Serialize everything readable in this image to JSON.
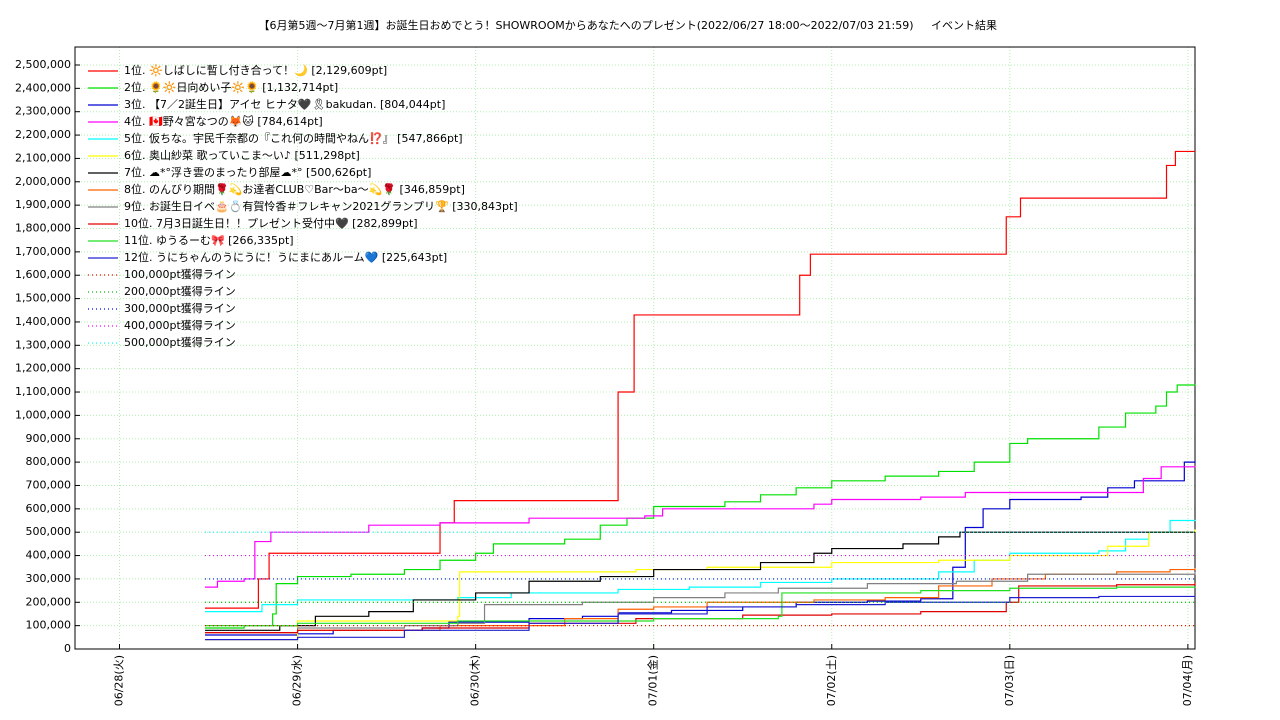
{
  "chart_data": {
    "type": "line",
    "title": "【6月第5週～7月第1週】お誕生日おめでとう！SHOWROOMからあなたへのプレゼント(2022/06/27 18:00〜2022/07/03 21:59)",
    "subtitle": "イベント結果",
    "xlim": [
      -0.25,
      6.04
    ],
    "xticks": [
      {
        "value": 0,
        "label": "06/28(火)"
      },
      {
        "value": 1,
        "label": "06/29(水)"
      },
      {
        "value": 2,
        "label": "06/30(木)"
      },
      {
        "value": 3,
        "label": "07/01(金)"
      },
      {
        "value": 4,
        "label": "07/02(土)"
      },
      {
        "value": 5,
        "label": "07/03(日)"
      },
      {
        "value": 6,
        "label": "07/04(月)"
      }
    ],
    "ylim": [
      0,
      2577000
    ],
    "yticks": [
      0,
      {
        "value": 100000,
        "label": "100,000"
      },
      {
        "value": 200000,
        "label": "200,000"
      },
      {
        "value": 300000,
        "label": "300,000"
      },
      {
        "value": 400000,
        "label": "400,000"
      },
      {
        "value": 500000,
        "label": "500,000"
      },
      {
        "value": 600000,
        "label": "600,000"
      },
      {
        "value": 700000,
        "label": "700,000"
      },
      {
        "value": 800000,
        "label": "800,000"
      },
      {
        "value": 900000,
        "label": "900,000"
      },
      {
        "value": 1000000,
        "label": "1,000,000"
      },
      {
        "value": 1100000,
        "label": "1,100,000"
      },
      {
        "value": 1200000,
        "label": "1,200,000"
      },
      {
        "value": 1300000,
        "label": "1,300,000"
      },
      {
        "value": 1400000,
        "label": "1,400,000"
      },
      {
        "value": 1500000,
        "label": "1,500,000"
      },
      {
        "value": 1600000,
        "label": "1,600,000"
      },
      {
        "value": 1700000,
        "label": "1,700,000"
      },
      {
        "value": 1800000,
        "label": "1,800,000"
      },
      {
        "value": 1900000,
        "label": "1,900,000"
      },
      {
        "value": 2000000,
        "label": "2,000,000"
      },
      {
        "value": 2100000,
        "label": "2,100,000"
      },
      {
        "value": 2200000,
        "label": "2,200,000"
      },
      {
        "value": 2300000,
        "label": "2,300,000"
      },
      {
        "value": 2400000,
        "label": "2,400,000"
      },
      {
        "value": 2500000,
        "label": "2,500,000"
      }
    ],
    "grid": true,
    "legend": "upper left",
    "series": [
      {
        "name": "1位. 🔆しばしに暫し付き合って！🌙 [2,129,609pt]",
        "color": "#ff0000",
        "x": [
          0.48,
          0.72,
          0.78,
          0.84,
          1.75,
          1.8,
          1.88,
          2.75,
          2.8,
          2.89,
          3.76,
          3.82,
          3.88,
          4.93,
          4.98,
          5.06,
          5.84,
          5.88,
          5.93,
          6.04
        ],
        "values": [
          175000,
          175000,
          300000,
          410000,
          410000,
          540000,
          635000,
          635000,
          1100000,
          1430000,
          1430000,
          1600000,
          1690000,
          1690000,
          1850000,
          1930000,
          1930000,
          2070000,
          2130000,
          2130000
        ]
      },
      {
        "name": "2位. 🌻🔆日向めい子🔆🌻 [1,132,714pt]",
        "color": "#00e000",
        "x": [
          0.48,
          0.7,
          0.86,
          0.88,
          1.0,
          1.3,
          1.6,
          1.8,
          2.0,
          2.1,
          2.5,
          2.7,
          2.85,
          3.0,
          3.4,
          3.6,
          3.8,
          4.0,
          4.3,
          4.6,
          4.8,
          5.0,
          5.1,
          5.4,
          5.5,
          5.65,
          5.82,
          5.88,
          5.94,
          6.04
        ],
        "values": [
          90000,
          100000,
          150000,
          280000,
          310000,
          320000,
          340000,
          380000,
          410000,
          450000,
          470000,
          530000,
          560000,
          610000,
          630000,
          660000,
          690000,
          720000,
          740000,
          760000,
          800000,
          880000,
          900000,
          900000,
          950000,
          1010000,
          1040000,
          1100000,
          1130000,
          1132714
        ]
      },
      {
        "name": "3位. 【7／2誕生日】アイセ ヒナタ🖤🎗bakudan. [804,044pt]",
        "color": "#0000d0",
        "x": [
          0.48,
          0.9,
          1.0,
          1.2,
          1.7,
          1.85,
          2.3,
          2.6,
          2.8,
          3.1,
          3.5,
          3.8,
          4.2,
          4.5,
          4.68,
          4.75,
          4.85,
          5.0,
          5.4,
          5.55,
          5.7,
          5.95,
          5.98,
          6.04
        ],
        "values": [
          60000,
          60000,
          65000,
          80000,
          90000,
          115000,
          130000,
          140000,
          155000,
          165000,
          180000,
          200000,
          205000,
          215000,
          350000,
          520000,
          600000,
          640000,
          650000,
          690000,
          720000,
          720000,
          800000,
          804044
        ]
      },
      {
        "name": "4位. 🇨🇦野々宮なつの🦊🐱 [784,614pt]",
        "color": "#ff00ff",
        "x": [
          0.48,
          0.55,
          0.7,
          0.76,
          0.85,
          1.3,
          1.4,
          1.8,
          2.3,
          2.8,
          2.95,
          3.05,
          3.8,
          3.9,
          4.0,
          4.5,
          4.75,
          5.6,
          5.75,
          5.85,
          6.04
        ],
        "values": [
          265000,
          290000,
          300000,
          460000,
          500000,
          500000,
          530000,
          540000,
          560000,
          560000,
          570000,
          600000,
          600000,
          620000,
          640000,
          650000,
          670000,
          670000,
          730000,
          780000,
          784614
        ]
      },
      {
        "name": "5位. 仮ちな。宇民千奈都の『これ何の時間やねん⁉️』 [547,866pt]",
        "color": "#00ffff",
        "x": [
          0.48,
          0.8,
          1.0,
          1.5,
          1.9,
          2.2,
          2.8,
          3.2,
          3.6,
          4.0,
          4.6,
          4.8,
          5.0,
          5.5,
          5.65,
          5.78,
          5.9,
          6.04
        ],
        "values": [
          160000,
          190000,
          210000,
          210000,
          220000,
          240000,
          255000,
          265000,
          285000,
          300000,
          330000,
          380000,
          410000,
          420000,
          470000,
          500000,
          550000,
          547866
        ]
      },
      {
        "name": "6位. 奥山紗菜 歌っていこま〜い♪ [511,298pt]",
        "color": "#ffff00",
        "x": [
          0.48,
          1.0,
          1.9,
          1.91,
          2.5,
          2.9,
          3.3,
          4.0,
          4.6,
          5.0,
          5.55,
          5.78,
          6.04
        ],
        "values": [
          40000,
          120000,
          140000,
          330000,
          330000,
          340000,
          350000,
          370000,
          380000,
          400000,
          440000,
          500000,
          511298
        ]
      },
      {
        "name": "7位. ☁*°浮き雲のまったり部屋☁*° [500,626pt]",
        "color": "#000000",
        "x": [
          0.48,
          0.9,
          1.1,
          1.4,
          1.65,
          2.0,
          2.3,
          2.7,
          3.0,
          3.6,
          3.9,
          4.0,
          4.4,
          4.6,
          4.72,
          6.04
        ],
        "values": [
          80000,
          100000,
          140000,
          160000,
          210000,
          240000,
          290000,
          310000,
          340000,
          370000,
          410000,
          430000,
          450000,
          480000,
          500000,
          500626
        ]
      },
      {
        "name": "8位. のんびり期間🌹💫お達者CLUB♡Bar〜ba〜💫🌹 [346,859pt]",
        "color": "#ff6000",
        "x": [
          0.48,
          1.0,
          1.8,
          2.5,
          2.8,
          3.0,
          3.3,
          3.9,
          4.3,
          4.6,
          4.9,
          5.2,
          5.6,
          5.9,
          6.04
        ],
        "values": [
          70000,
          80000,
          100000,
          130000,
          170000,
          180000,
          200000,
          210000,
          220000,
          270000,
          300000,
          320000,
          330000,
          340000,
          346859
        ]
      },
      {
        "name": "9位. お誕生日イベ🎂💍有賀怜香＃フレキャン2021グランプリ🏆 [330,843pt]",
        "color": "#808080",
        "x": [
          0.48,
          1.0,
          1.6,
          1.9,
          2.05,
          2.6,
          3.0,
          3.4,
          3.7,
          4.2,
          4.7,
          5.1,
          6.04
        ],
        "values": [
          70000,
          90000,
          100000,
          110000,
          190000,
          200000,
          220000,
          240000,
          260000,
          280000,
          290000,
          320000,
          330843
        ]
      },
      {
        "name": "10位. 7月3日誕生日！！プレゼント受付中🖤 [282,899pt]",
        "color": "#e00000",
        "x": [
          0.48,
          1.0,
          1.7,
          2.3,
          2.9,
          3.5,
          4.0,
          4.5,
          4.98,
          5.05,
          5.6,
          6.04
        ],
        "values": [
          70000,
          80000,
          90000,
          110000,
          130000,
          145000,
          150000,
          160000,
          200000,
          270000,
          275000,
          282899
        ]
      },
      {
        "name": "11位. ゆうるーむ🎀 [266,335pt]",
        "color": "#20e020",
        "x": [
          0.48,
          1.0,
          1.9,
          2.5,
          3.0,
          3.7,
          3.72,
          4.5,
          5.0,
          5.6,
          6.04
        ],
        "values": [
          100000,
          110000,
          120000,
          120000,
          130000,
          140000,
          240000,
          250000,
          260000,
          265000,
          266335
        ]
      },
      {
        "name": "12位. うにちゃんのうにうに！うにまにあルーム💙 [225,643pt]",
        "color": "#2020d0",
        "x": [
          0.48,
          1.0,
          1.6,
          2.3,
          2.8,
          3.3,
          3.8,
          4.3,
          5.0,
          5.5,
          6.04
        ],
        "values": [
          40000,
          50000,
          80000,
          110000,
          150000,
          180000,
          190000,
          200000,
          220000,
          225000,
          225643
        ]
      },
      {
        "name": "100,000pt獲得ライン",
        "color": "#ff0000",
        "dotted": true,
        "x": [
          0.48,
          6.04
        ],
        "values": [
          100000,
          100000
        ]
      },
      {
        "name": "200,000pt獲得ライン",
        "color": "#00c000",
        "dotted": true,
        "x": [
          0.48,
          6.04
        ],
        "values": [
          200000,
          200000
        ]
      },
      {
        "name": "300,000pt獲得ライン",
        "color": "#0000ff",
        "dotted": true,
        "x": [
          0.48,
          6.04
        ],
        "values": [
          300000,
          300000
        ]
      },
      {
        "name": "400,000pt獲得ライン",
        "color": "#ff00ff",
        "dotted": true,
        "x": [
          0.48,
          6.04
        ],
        "values": [
          400000,
          400000
        ]
      },
      {
        "name": "500,000pt獲得ライン",
        "color": "#00ffff",
        "dotted": true,
        "x": [
          0.48,
          6.04
        ],
        "values": [
          500000,
          500000
        ]
      }
    ]
  }
}
